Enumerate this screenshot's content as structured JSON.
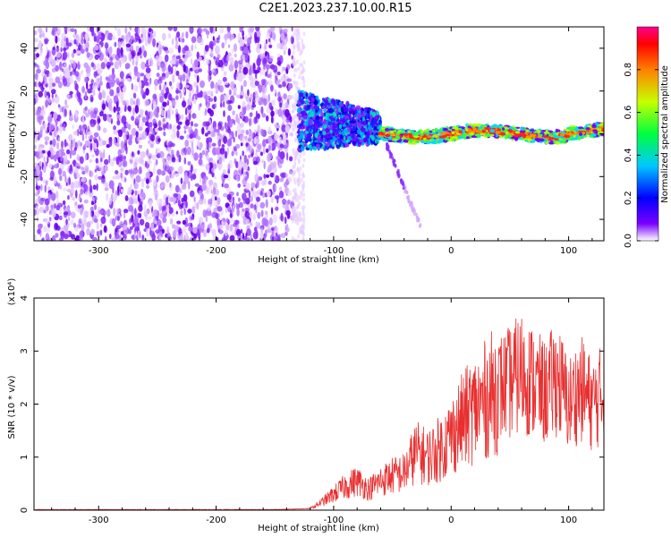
{
  "title": "C2E1.2023.237.10.00.R15",
  "chart_data": [
    {
      "type": "heatmap",
      "xlabel": "Height of straight line (km)",
      "ylabel": "Frequency (Hz)",
      "xlim": [
        -355,
        130
      ],
      "ylim": [
        -50,
        50
      ],
      "xticks": [
        -300,
        -200,
        -100,
        0,
        100
      ],
      "yticks": [
        -40,
        -20,
        0,
        20,
        40
      ],
      "colorbar": {
        "label": "Normalized spectral amplitude",
        "range": [
          0,
          1
        ],
        "ticks": [
          0.0,
          0.2,
          0.4,
          0.6,
          0.8
        ],
        "colormap": "rainbow"
      },
      "regions": [
        {
          "x": [
            -355,
            -135
          ],
          "freq": [
            -50,
            50
          ],
          "amplitude": 0.2
        },
        {
          "x": [
            -130,
            -60
          ],
          "freq": [
            -10,
            20
          ],
          "amplitude": 0.45
        },
        {
          "x": [
            -60,
            130
          ],
          "freq": [
            -4,
            6
          ],
          "amplitude": 0.95
        }
      ],
      "grid": false
    },
    {
      "type": "line",
      "xlabel": "Height of straight line (km)",
      "ylabel": "SNR (10 * v/v)",
      "yscale_label": "(x10⁴)",
      "xlim": [
        -355,
        130
      ],
      "ylim": [
        0,
        4
      ],
      "xticks": [
        -300,
        -200,
        -100,
        0,
        100
      ],
      "yticks": [
        0,
        1,
        2,
        3,
        4
      ],
      "color": "#e83030",
      "series": [
        {
          "x": [
            -355,
            -300,
            -200,
            -150,
            -120,
            -110,
            -100,
            -90,
            -80,
            -70,
            -60,
            -50,
            -40,
            -30,
            -20,
            -10,
            0,
            10,
            20,
            30,
            40,
            50,
            60,
            70,
            80,
            90,
            100,
            110,
            120,
            130
          ],
          "values": [
            0.01,
            0.01,
            0.01,
            0.01,
            0.03,
            0.15,
            0.3,
            0.45,
            0.55,
            0.4,
            0.55,
            0.65,
            0.7,
            1.1,
            1.0,
            1.15,
            1.4,
            1.7,
            1.9,
            2.1,
            2.3,
            2.4,
            2.6,
            2.4,
            2.2,
            2.5,
            2.0,
            2.3,
            2.0,
            2.2
          ]
        }
      ],
      "grid": false
    }
  ]
}
